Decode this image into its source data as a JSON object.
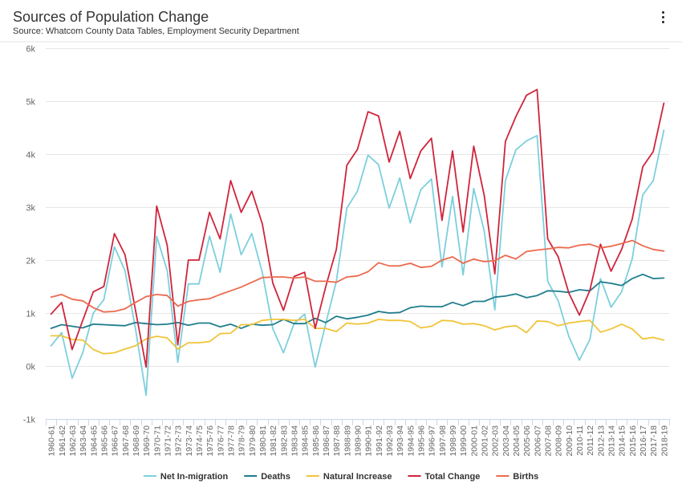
{
  "header": {
    "title": "Sources of Population Change",
    "subtitle": "Source: Whatcom County Data Tables, Employment Security Department",
    "menu_icon": "vertical-ellipsis-icon"
  },
  "chart_data": {
    "type": "line",
    "title": "Sources of Population Change",
    "subtitle": "Source: Whatcom County Data Tables, Employment Security Department",
    "xlabel": "",
    "ylabel": "",
    "ylim": [
      -1000,
      6000
    ],
    "yticks": [
      -1000,
      0,
      1000,
      2000,
      3000,
      4000,
      5000,
      6000
    ],
    "ytick_labels": [
      "-1k",
      "0k",
      "1k",
      "2k",
      "3k",
      "4k",
      "5k",
      "6k"
    ],
    "grid": true,
    "legend_position": "bottom",
    "categories": [
      "1960-61",
      "1961-62",
      "1962-63",
      "1963-64",
      "1964-65",
      "1965-66",
      "1966-67",
      "1967-68",
      "1968-69",
      "1969-70",
      "1970-71",
      "1971-72",
      "1972-73",
      "1973-74",
      "1974-75",
      "1975-76",
      "1976-77",
      "1977-78",
      "1978-79",
      "1979-80",
      "1980-81",
      "1981-82",
      "1982-83",
      "1983-84",
      "1984-85",
      "1985-86",
      "1986-87",
      "1987-88",
      "1988-89",
      "1989-90",
      "1990-91",
      "1991-92",
      "1992-93",
      "1993-94",
      "1994-95",
      "1995-96",
      "1996-97",
      "1997-98",
      "1998-99",
      "1999-00",
      "2000-01",
      "2001-02",
      "2002-03",
      "2003-04",
      "2004-05",
      "2005-06",
      "2006-07",
      "2007-08",
      "2008-09",
      "2009-10",
      "2010-11",
      "2011-12",
      "2012-13",
      "2013-14",
      "2014-15",
      "2015-16",
      "2016-17",
      "2017-18",
      "2018-19"
    ],
    "series": [
      {
        "name": "Net In-migration",
        "color": "#7ccfdd",
        "values": [
          380,
          630,
          -230,
          250,
          1000,
          1250,
          2250,
          1800,
          700,
          -550,
          2450,
          1800,
          70,
          1550,
          1550,
          2450,
          1770,
          2870,
          2100,
          2500,
          1760,
          700,
          250,
          800,
          980,
          -20,
          800,
          1600,
          2980,
          3300,
          3980,
          3800,
          2980,
          3550,
          2700,
          3330,
          3530,
          1870,
          3200,
          1720,
          3350,
          2550,
          1060,
          3500,
          4080,
          4250,
          4350,
          1600,
          1230,
          560,
          110,
          500,
          1650,
          1110,
          1400,
          2020,
          3230,
          3500,
          4450
        ]
      },
      {
        "name": "Deaths",
        "color": "#1f7d8c",
        "values": [
          710,
          780,
          750,
          720,
          790,
          780,
          770,
          760,
          820,
          800,
          780,
          790,
          820,
          770,
          810,
          810,
          740,
          790,
          710,
          790,
          770,
          780,
          880,
          800,
          800,
          900,
          820,
          940,
          890,
          920,
          960,
          1030,
          1000,
          1010,
          1100,
          1130,
          1120,
          1120,
          1200,
          1140,
          1220,
          1220,
          1300,
          1320,
          1360,
          1290,
          1330,
          1420,
          1410,
          1390,
          1440,
          1420,
          1590,
          1560,
          1520,
          1650,
          1730,
          1650,
          1660
        ]
      },
      {
        "name": "Natural Increase",
        "color": "#f0c43a",
        "values": [
          570,
          570,
          500,
          490,
          310,
          230,
          250,
          320,
          380,
          510,
          560,
          530,
          320,
          440,
          440,
          460,
          610,
          620,
          780,
          780,
          860,
          880,
          880,
          860,
          880,
          710,
          710,
          650,
          810,
          790,
          810,
          880,
          860,
          860,
          840,
          720,
          750,
          860,
          850,
          790,
          800,
          760,
          680,
          740,
          760,
          630,
          850,
          840,
          760,
          810,
          840,
          860,
          640,
          700,
          790,
          700,
          510,
          540,
          490
        ]
      },
      {
        "name": "Total Change",
        "color": "#d0243c",
        "values": [
          980,
          1200,
          310,
          860,
          1400,
          1500,
          2500,
          2100,
          1050,
          -20,
          3020,
          2280,
          400,
          2000,
          2000,
          2900,
          2400,
          3500,
          2900,
          3300,
          2680,
          1560,
          1050,
          1690,
          1770,
          710,
          1500,
          2200,
          3790,
          4090,
          4800,
          4720,
          3850,
          4430,
          3540,
          4060,
          4300,
          2750,
          4060,
          2530,
          4150,
          3220,
          1740,
          4240,
          4710,
          5110,
          5220,
          2400,
          2060,
          1380,
          960,
          1430,
          2300,
          1790,
          2200,
          2770,
          3760,
          4050,
          4960
        ]
      },
      {
        "name": "Births",
        "color": "#ec6a4f",
        "values": [
          1300,
          1350,
          1260,
          1230,
          1100,
          1020,
          1030,
          1080,
          1200,
          1310,
          1350,
          1330,
          1130,
          1220,
          1250,
          1270,
          1350,
          1420,
          1490,
          1580,
          1670,
          1680,
          1680,
          1660,
          1680,
          1600,
          1600,
          1580,
          1680,
          1700,
          1780,
          1950,
          1890,
          1890,
          1940,
          1860,
          1880,
          2000,
          2060,
          1940,
          2020,
          1970,
          1990,
          2090,
          2020,
          2160,
          2190,
          2210,
          2240,
          2230,
          2280,
          2300,
          2230,
          2260,
          2310,
          2370,
          2270,
          2200,
          2170
        ]
      }
    ]
  }
}
